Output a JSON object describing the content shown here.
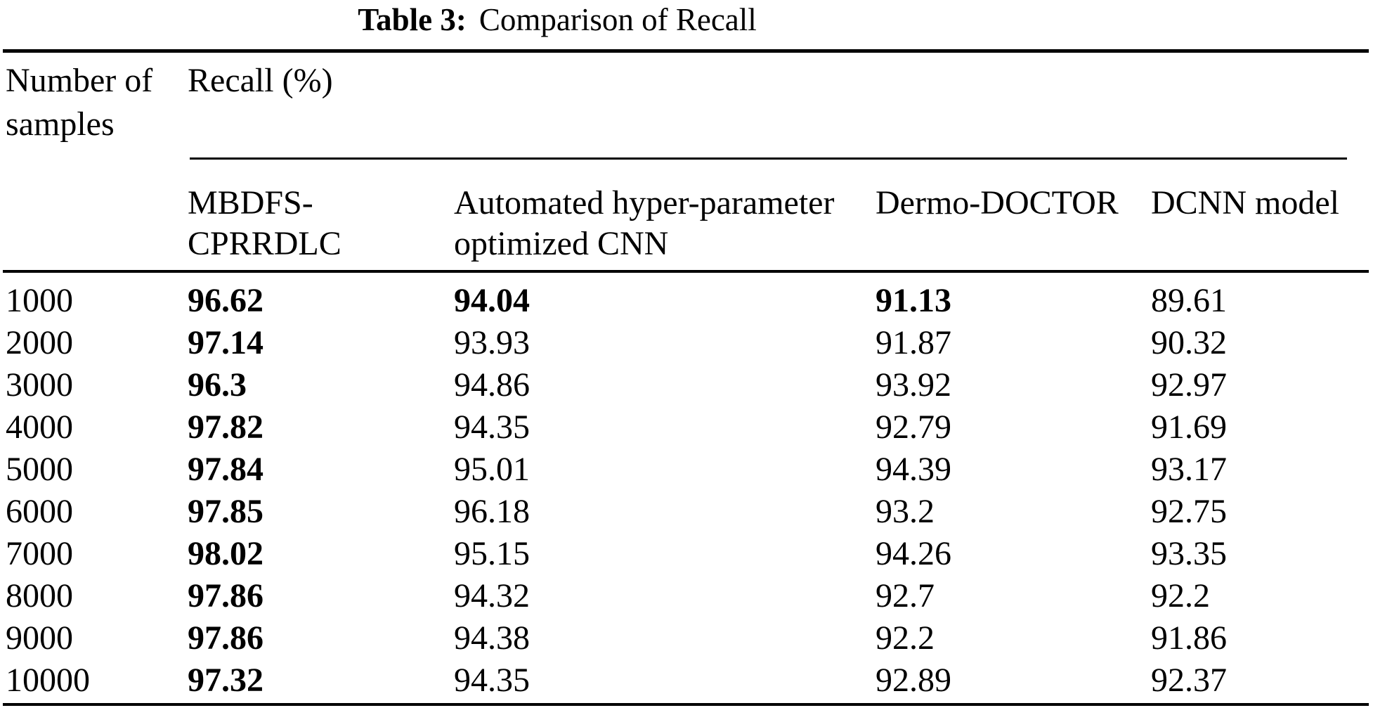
{
  "title": {
    "prefix": "Table 3:",
    "text": "Comparison of Recall"
  },
  "table": {
    "row_header": {
      "lines": [
        "Number of",
        "samples"
      ]
    },
    "group_header": "Recall (%)",
    "columns": [
      {
        "lines": [
          "MBDFS-",
          "CPRRDLC"
        ]
      },
      {
        "lines": [
          "Automated hyper-parameter",
          "optimized CNN"
        ]
      },
      {
        "lines": [
          "Dermo-DOCTOR"
        ]
      },
      {
        "lines": [
          "DCNN model"
        ]
      }
    ],
    "rows": [
      {
        "samples": "1000",
        "values": [
          "96.62",
          "94.04",
          "91.13",
          "89.61"
        ],
        "bold": [
          true,
          true,
          true,
          false
        ]
      },
      {
        "samples": "2000",
        "values": [
          "97.14",
          "93.93",
          "91.87",
          "90.32"
        ],
        "bold": [
          true,
          false,
          false,
          false
        ]
      },
      {
        "samples": "3000",
        "values": [
          "96.3",
          "94.86",
          "93.92",
          "92.97"
        ],
        "bold": [
          true,
          false,
          false,
          false
        ]
      },
      {
        "samples": "4000",
        "values": [
          "97.82",
          "94.35",
          "92.79",
          "91.69"
        ],
        "bold": [
          true,
          false,
          false,
          false
        ]
      },
      {
        "samples": "5000",
        "values": [
          "97.84",
          "95.01",
          "94.39",
          "93.17"
        ],
        "bold": [
          true,
          false,
          false,
          false
        ]
      },
      {
        "samples": "6000",
        "values": [
          "97.85",
          "96.18",
          "93.2",
          "92.75"
        ],
        "bold": [
          true,
          false,
          false,
          false
        ]
      },
      {
        "samples": "7000",
        "values": [
          "98.02",
          "95.15",
          "94.26",
          "93.35"
        ],
        "bold": [
          true,
          false,
          false,
          false
        ]
      },
      {
        "samples": "8000",
        "values": [
          "97.86",
          "94.32",
          "92.7",
          "92.2"
        ],
        "bold": [
          true,
          false,
          false,
          false
        ]
      },
      {
        "samples": "9000",
        "values": [
          "97.86",
          "94.38",
          "92.2",
          "91.86"
        ],
        "bold": [
          true,
          false,
          false,
          false
        ]
      },
      {
        "samples": "10000",
        "values": [
          "97.32",
          "94.35",
          "92.89",
          "92.37"
        ],
        "bold": [
          true,
          false,
          false,
          false
        ]
      }
    ]
  },
  "colors": {
    "text": "#000000",
    "background": "#ffffff",
    "rule": "#000000"
  }
}
